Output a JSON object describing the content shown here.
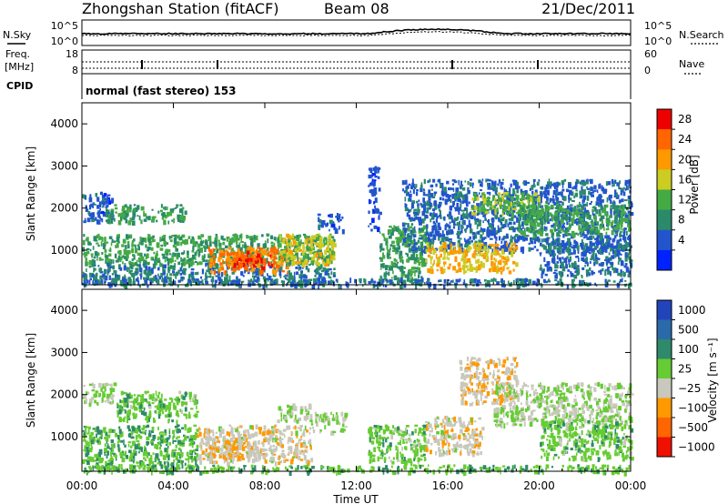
{
  "header": {
    "station": "Zhongshan Station (fitACF)",
    "beam": "Beam 08",
    "date": "21/Dec/2011"
  },
  "top_panel": {
    "left_label_1": "N.Sky",
    "left_label_2": "Freq.",
    "left_label_3": "[MHz]",
    "cpid_label": "CPID",
    "right_label_1": "N.Search",
    "right_label_2": "Nave",
    "nsky_ticks": [
      "10^5",
      "10^0"
    ],
    "freq_ticks": [
      "18",
      "8"
    ],
    "nsearch_ticks": [
      "10^5",
      "10^0"
    ],
    "nave_ticks": [
      "60",
      "0"
    ],
    "cpid_text": "normal (fast stereo) 153"
  },
  "power_panel": {
    "colorbar_title": "Power [dB]",
    "colorbar_ticks": [
      "28",
      "24",
      "20",
      "16",
      "12",
      "8",
      "4"
    ],
    "colors": [
      "#0022ff",
      "#2255cc",
      "#2a8a6a",
      "#44aa44",
      "#cccc22",
      "#ff9900",
      "#ff6600",
      "#ee0000"
    ]
  },
  "velocity_panel": {
    "colorbar_title": "Velocity [m s⁻¹]",
    "colorbar_ticks": [
      "1000",
      "500",
      "100",
      "25",
      "−25",
      "−100",
      "−500",
      "−1000"
    ],
    "colors": [
      "#2244bb",
      "#2a6aaa",
      "#2e8a6a",
      "#66cc33",
      "#c8c8bc",
      "#ff9900",
      "#ff6600",
      "#ee1100"
    ]
  },
  "axes": {
    "ylabel": "Slant Range [km]",
    "xlabel": "Time UT",
    "yticks": [
      "4000",
      "3000",
      "2000",
      "1000"
    ],
    "xticks": [
      "00:00",
      "04:00",
      "08:00",
      "12:00",
      "16:00",
      "20:00",
      "00:00"
    ]
  },
  "chart_data": [
    {
      "type": "heatmap",
      "title": "",
      "xlabel": "Time UT",
      "ylabel": "Slant Range [km]",
      "x_range_hours": [
        0,
        24
      ],
      "y_range_km": [
        180,
        4500
      ],
      "colorbar": "Power [dB]",
      "colorbar_range": [
        0,
        32
      ],
      "regions": [
        {
          "t": [
            0,
            1.3
          ],
          "r": [
            1700,
            2400
          ],
          "v": 6
        },
        {
          "t": [
            0,
            11
          ],
          "r": [
            700,
            1400
          ],
          "v": 12
        },
        {
          "t": [
            0,
            11
          ],
          "r": [
            250,
            700
          ],
          "v": 9
        },
        {
          "t": [
            1,
            4.5
          ],
          "r": [
            1700,
            2100
          ],
          "v": 12
        },
        {
          "t": [
            5.5,
            9
          ],
          "r": [
            500,
            1100
          ],
          "v": 24
        },
        {
          "t": [
            6.5,
            8.5
          ],
          "r": [
            600,
            1000
          ],
          "v": 28
        },
        {
          "t": [
            8.5,
            11
          ],
          "r": [
            700,
            1400
          ],
          "v": 18
        },
        {
          "t": [
            10.3,
            11.4
          ],
          "r": [
            1500,
            1900
          ],
          "v": 6
        },
        {
          "t": [
            12.5,
            13
          ],
          "r": [
            1500,
            3000
          ],
          "v": 5
        },
        {
          "t": [
            13,
            15
          ],
          "r": [
            250,
            1600
          ],
          "v": 12
        },
        {
          "t": [
            14,
            24
          ],
          "r": [
            1000,
            2700
          ],
          "v": 7
        },
        {
          "t": [
            15,
            19
          ],
          "r": [
            500,
            1200
          ],
          "v": 20
        },
        {
          "t": [
            17,
            20
          ],
          "r": [
            1900,
            2400
          ],
          "v": 15
        },
        {
          "t": [
            19,
            24
          ],
          "r": [
            1400,
            2100
          ],
          "v": 13
        },
        {
          "t": [
            20,
            24
          ],
          "r": [
            400,
            1200
          ],
          "v": 8
        },
        {
          "t": [
            0,
            24
          ],
          "r": [
            180,
            350
          ],
          "v": 8
        }
      ]
    },
    {
      "type": "heatmap",
      "title": "",
      "xlabel": "Time UT",
      "ylabel": "Slant Range [km]",
      "x_range_hours": [
        0,
        24
      ],
      "y_range_km": [
        180,
        4500
      ],
      "colorbar": "Velocity [m s⁻¹]",
      "colorbar_range": [
        -1000,
        1000
      ],
      "regions": [
        {
          "t": [
            0,
            1.5
          ],
          "r": [
            1800,
            2300
          ],
          "v": 0
        },
        {
          "t": [
            0,
            5
          ],
          "r": [
            250,
            1300
          ],
          "v": 200
        },
        {
          "t": [
            1.5,
            5
          ],
          "r": [
            1400,
            2100
          ],
          "v": 150
        },
        {
          "t": [
            5,
            10
          ],
          "r": [
            400,
            1300
          ],
          "v": -150
        },
        {
          "t": [
            5.5,
            8
          ],
          "r": [
            500,
            1000
          ],
          "v": -200
        },
        {
          "t": [
            8.5,
            10
          ],
          "r": [
            1400,
            1800
          ],
          "v": 0
        },
        {
          "t": [
            10,
            11.5
          ],
          "r": [
            1100,
            1600
          ],
          "v": 0
        },
        {
          "t": [
            12.5,
            15
          ],
          "r": [
            400,
            1300
          ],
          "v": 120
        },
        {
          "t": [
            15,
            17.5
          ],
          "r": [
            600,
            1500
          ],
          "v": -150
        },
        {
          "t": [
            16.5,
            19
          ],
          "r": [
            1800,
            2900
          ],
          "v": -200
        },
        {
          "t": [
            18,
            24
          ],
          "r": [
            1300,
            2300
          ],
          "v": 0
        },
        {
          "t": [
            20,
            24
          ],
          "r": [
            500,
            1400
          ],
          "v": 150
        },
        {
          "t": [
            0,
            24
          ],
          "r": [
            180,
            350
          ],
          "v": 200
        }
      ]
    }
  ]
}
